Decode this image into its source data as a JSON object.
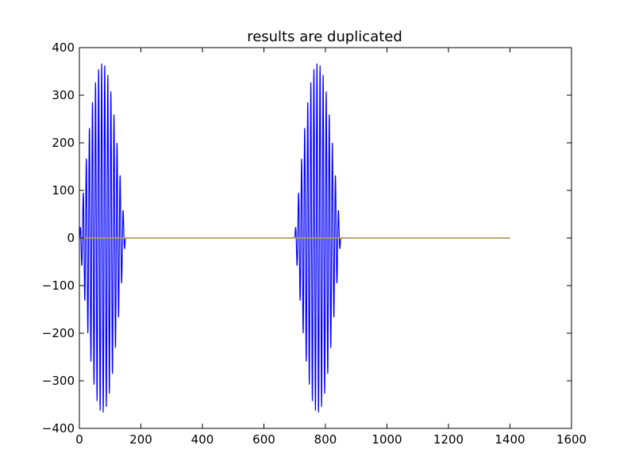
{
  "chart_data": {
    "type": "line",
    "title": "results are duplicated",
    "xlabel": "",
    "ylabel": "",
    "xlim": [
      0,
      1600
    ],
    "ylim": [
      -400,
      400
    ],
    "xticks": [
      0,
      200,
      400,
      600,
      800,
      1000,
      1200,
      1400,
      1600
    ],
    "yticks": [
      -400,
      -300,
      -200,
      -100,
      0,
      100,
      200,
      300,
      400
    ],
    "xtick_labels": [
      "0",
      "200",
      "400",
      "600",
      "800",
      "1000",
      "1200",
      "1400",
      "1600"
    ],
    "ytick_labels": [
      "−400",
      "−300",
      "−200",
      "−100",
      "0",
      "100",
      "200",
      "300",
      "400"
    ],
    "grid": false,
    "legend": "none",
    "series": [
      {
        "color": "#0000ff",
        "style": "oscillating burst",
        "bursts": [
          {
            "x_start": 0,
            "x_end": 150,
            "peak_amplitude": 367,
            "period": 10
          },
          {
            "x_start": 700,
            "x_end": 850,
            "peak_amplitude": 367,
            "period": 10
          }
        ],
        "x_end": 1400,
        "baseline": 0
      },
      {
        "color": "#bfa040",
        "style": "flat line",
        "x": [
          0,
          1400
        ],
        "y": [
          0,
          0
        ]
      }
    ]
  }
}
